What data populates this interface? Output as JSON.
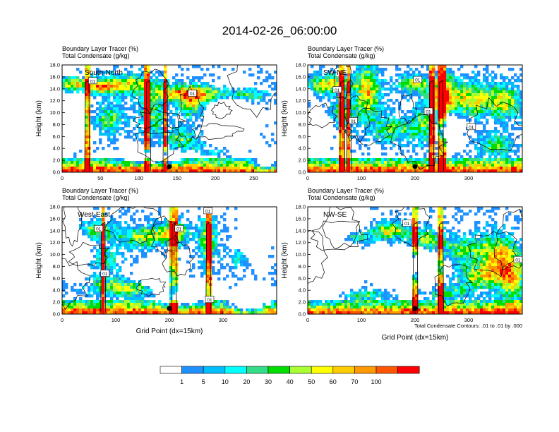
{
  "figure": {
    "title": "2014-02-26_06:00:00",
    "contour_note": "Total Condensate Contours: .01 to .01 by .000",
    "colors": {
      "levels": [
        "#ffffff",
        "#1e90ff",
        "#00bfff",
        "#00ffff",
        "#33dd88",
        "#00dd00",
        "#aaff33",
        "#ffff00",
        "#ffcc00",
        "#ff9900",
        "#ff5500",
        "#ff0000"
      ],
      "contour": "#000000"
    }
  },
  "colorbar": {
    "labels": [
      "1",
      "5",
      "10",
      "20",
      "30",
      "40",
      "50",
      "60",
      "70",
      "100"
    ]
  },
  "chart_data": [
    {
      "type": "heatmap",
      "panel": "South-North",
      "label": "South-North",
      "title_line1": "Boundary Layer Tracer   (%)",
      "title_line2": "Total Condensate   (g/kg)",
      "ylabel": "Height (km)",
      "xlabel": "",
      "xlim": [
        0,
        280
      ],
      "ylim": [
        0,
        18
      ],
      "xticks": [
        0,
        50,
        100,
        150,
        200,
        250
      ],
      "yticks": [
        "0.0",
        "2.0",
        "4.0",
        "6.0",
        "8.0",
        "10.0",
        "12.0",
        "14.0",
        "16.0",
        "18.0"
      ],
      "contour_labels": [
        {
          "text": "01",
          "x": 40,
          "y": 15.3
        },
        {
          "text": "01",
          "x": 170,
          "y": 13.2
        }
      ],
      "marker_x": 140
    },
    {
      "type": "heatmap",
      "panel": "SW-NE",
      "label": "SW-NE",
      "title_line1": "Boundary Layer Tracer   (%)",
      "title_line2": "Total Condensate   (g/kg)",
      "ylabel": "Height (km)",
      "xlabel": "",
      "xlim": [
        0,
        400
      ],
      "ylim": [
        0,
        18
      ],
      "xticks": [
        0,
        100,
        200,
        300
      ],
      "yticks": [
        "0.0",
        "2.0",
        "4.0",
        "6.0",
        "8.0",
        "10.0",
        "12.0",
        "14.0",
        "16.0",
        "18.0"
      ],
      "contour_labels": [
        {
          "text": "01",
          "x": 55,
          "y": 13.8
        },
        {
          "text": "01",
          "x": 205,
          "y": 15.5
        },
        {
          "text": "01",
          "x": 225,
          "y": 10.2
        },
        {
          "text": "01",
          "x": 85,
          "y": 8.6
        },
        {
          "text": "01",
          "x": 305,
          "y": 7.6
        }
      ],
      "marker_x": 200
    },
    {
      "type": "heatmap",
      "panel": "West-East",
      "label": "West-East",
      "title_line1": "Boundary Layer Tracer   (%)",
      "title_line2": "Total Condensate   (g/kg)",
      "ylabel": "Height (km)",
      "xlabel": "Grid Point (dx=15km)",
      "xlim": [
        0,
        400
      ],
      "ylim": [
        0,
        18
      ],
      "xticks": [
        0,
        100,
        200,
        300
      ],
      "yticks": [
        "0.0",
        "2.0",
        "4.0",
        "6.0",
        "8.0",
        "10.0",
        "12.0",
        "14.0",
        "16.0",
        "18.0"
      ],
      "contour_labels": [
        {
          "text": "01",
          "x": 68,
          "y": 14.3
        },
        {
          "text": "01",
          "x": 218,
          "y": 14.3
        },
        {
          "text": "01",
          "x": 272,
          "y": 17.3
        },
        {
          "text": "01",
          "x": 80,
          "y": 6.8
        },
        {
          "text": "01",
          "x": 275,
          "y": 2.4
        }
      ],
      "marker_x": 200
    },
    {
      "type": "heatmap",
      "panel": "NW-SE",
      "label": "NW-SE",
      "title_line1": "Boundary Layer Tracer   (%)",
      "title_line2": "Total Condensate   (g/kg)",
      "ylabel": "Height (km)",
      "xlabel": "Grid Point (dx=15km)",
      "xlim": [
        0,
        400
      ],
      "ylim": [
        0,
        18
      ],
      "xticks": [
        0,
        100,
        200,
        300
      ],
      "yticks": [
        "0.0",
        "2.0",
        "4.0",
        "6.0",
        "8.0",
        "10.0",
        "12.0",
        "14.0",
        "16.0",
        "18.0"
      ],
      "contour_labels": [
        {
          "text": "01",
          "x": 185,
          "y": 15.2
        },
        {
          "text": "01",
          "x": 392,
          "y": 9.1
        }
      ],
      "marker_x": 200
    }
  ]
}
